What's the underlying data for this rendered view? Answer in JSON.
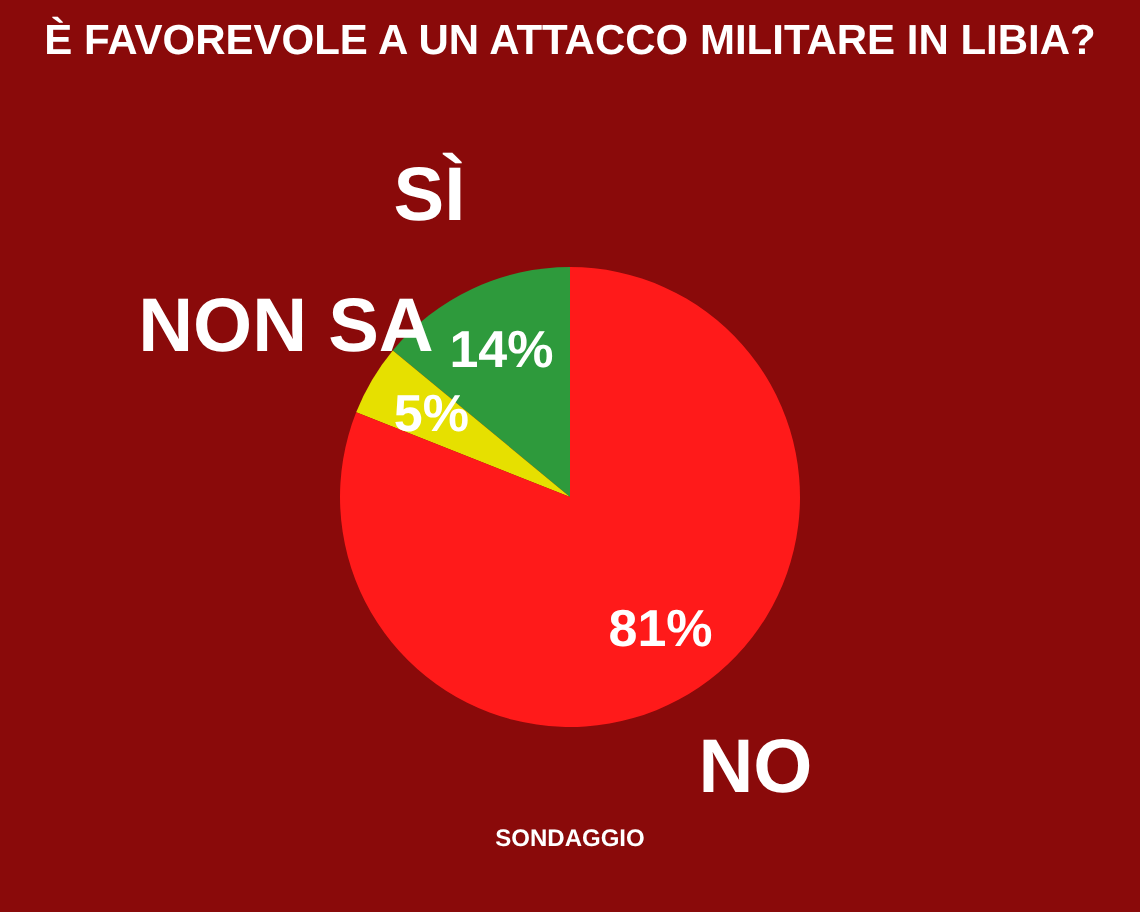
{
  "chart_data": {
    "type": "pie",
    "title": "È FAVOREVOLE A UN ATTACCO MILITARE IN LIBIA?",
    "categories": [
      "SÌ",
      "NON SA",
      "NO"
    ],
    "values": [
      14,
      5,
      81
    ],
    "colors": [
      "#2e9a3c",
      "#e6e000",
      "#ff1a1a"
    ],
    "value_labels": [
      "14%",
      "5%",
      "81%"
    ],
    "annotations": [
      "SONDAGGIO"
    ]
  }
}
